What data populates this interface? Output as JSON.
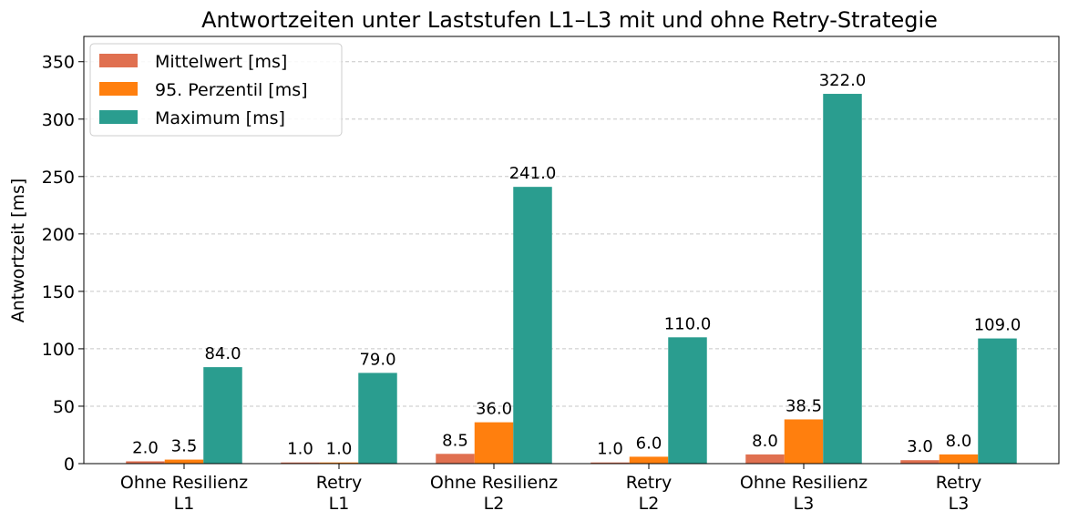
{
  "chart_data": {
    "type": "bar",
    "title": "Antwortzeiten unter Laststufen L1–L3 mit und ohne Retry-Strategie",
    "xlabel": "",
    "ylabel": "Antwortzeit [ms]",
    "ylim": [
      0,
      372
    ],
    "yticks": [
      0,
      50,
      100,
      150,
      200,
      250,
      300,
      350
    ],
    "grid": "horizontal dashed",
    "legend_position": "top-left",
    "categories": [
      [
        "Ohne Resilienz",
        "L1"
      ],
      [
        "Retry",
        "L1"
      ],
      [
        "Ohne Resilienz",
        "L2"
      ],
      [
        "Retry",
        "L2"
      ],
      [
        "Ohne Resilienz",
        "L3"
      ],
      [
        "Retry",
        "L3"
      ]
    ],
    "series": [
      {
        "name": "Mittelwert [ms]",
        "color": "#e07050",
        "values": [
          2.0,
          1.0,
          8.5,
          1.0,
          8.0,
          3.0
        ]
      },
      {
        "name": "95. Perzentil [ms]",
        "color": "#ff7f0e",
        "values": [
          3.5,
          1.0,
          36.0,
          6.0,
          38.5,
          8.0
        ]
      },
      {
        "name": "Maximum [ms]",
        "color": "#2a9d8f",
        "values": [
          84.0,
          79.0,
          241.0,
          110.0,
          322.0,
          109.0
        ]
      }
    ]
  }
}
